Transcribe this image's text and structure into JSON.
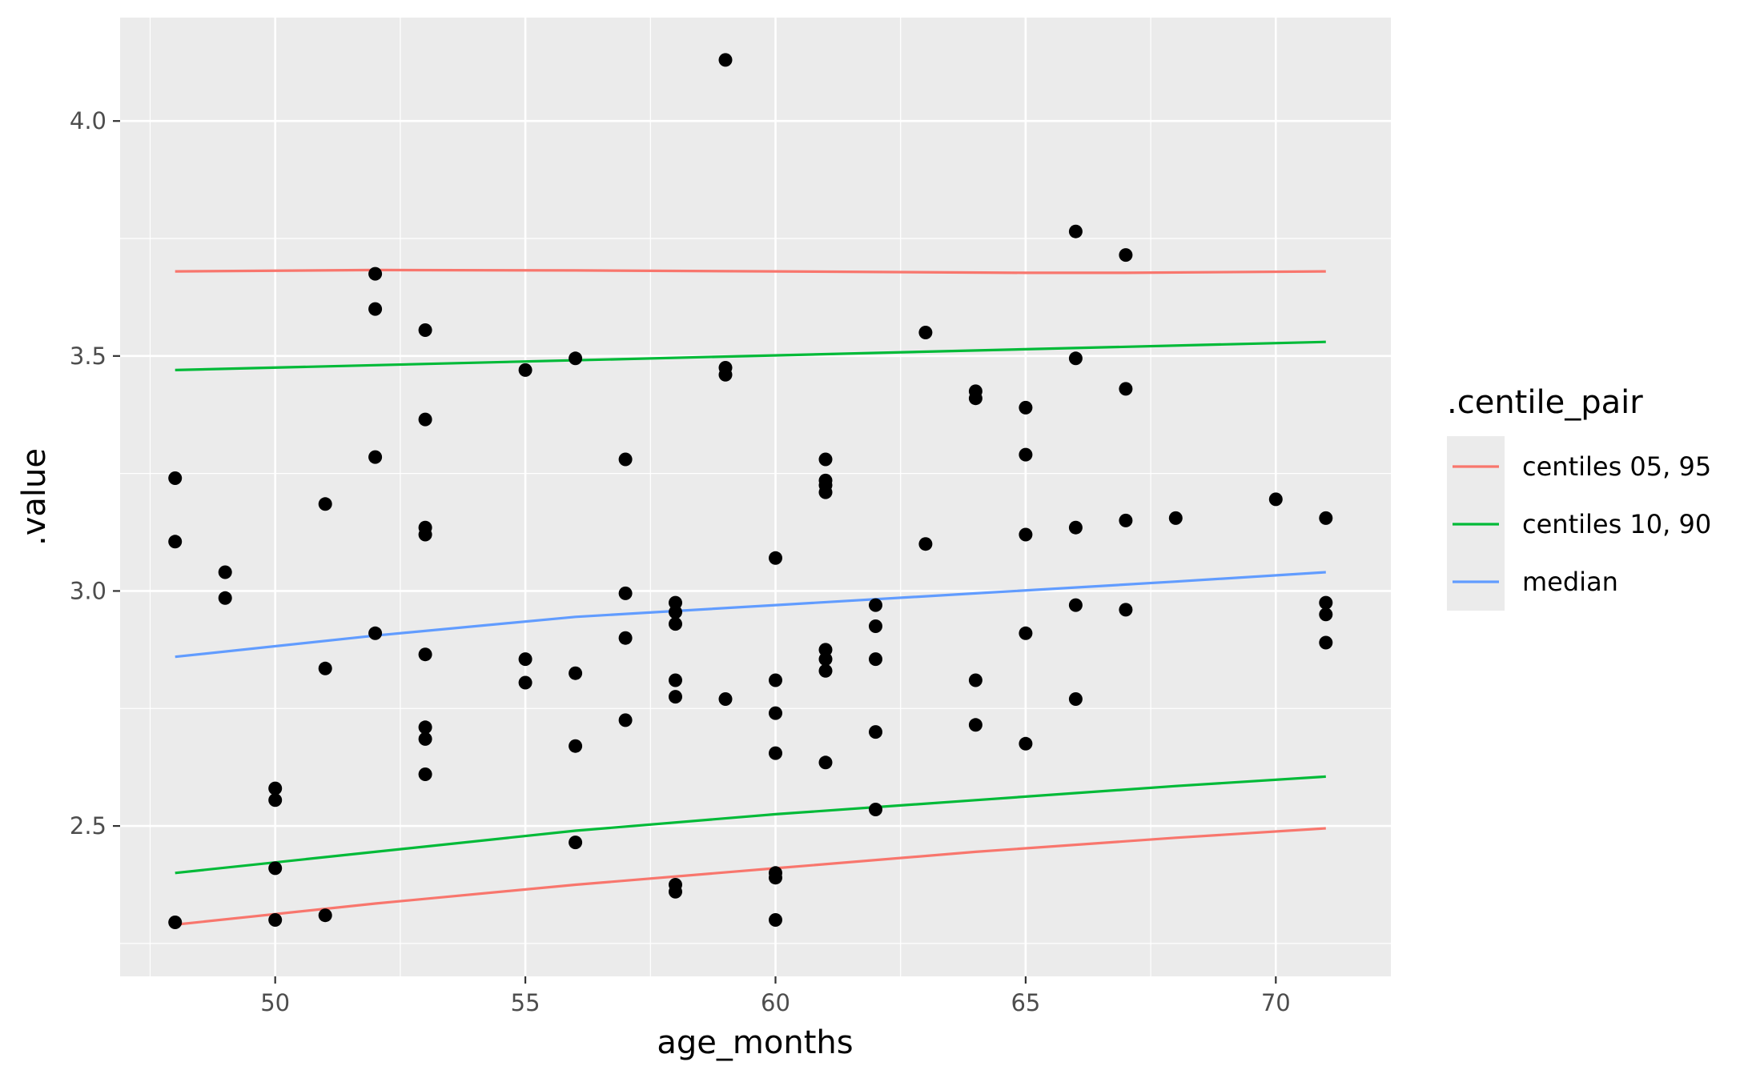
{
  "chart_data": {
    "type": "scatter",
    "xlabel": "age_months",
    "ylabel": ".value",
    "xlim": [
      46.9,
      72.3
    ],
    "ylim": [
      2.18,
      4.22
    ],
    "x_ticks": [
      50,
      55,
      60,
      65,
      70
    ],
    "x_tick_labels": [
      "50",
      "55",
      "60",
      "65",
      "70"
    ],
    "y_ticks": [
      2.5,
      3.0,
      3.5,
      4.0
    ],
    "y_tick_labels": [
      "2.5",
      "3.0",
      "3.5",
      "4.0"
    ],
    "grid": true,
    "background": "#ebebeb",
    "legend": {
      "title": ".centile_pair",
      "position": "right",
      "items": [
        {
          "label": "centiles 05, 95",
          "color": "#f8766d"
        },
        {
          "label": "centiles 10, 90",
          "color": "#00ba38"
        },
        {
          "label": "median",
          "color": "#619cff"
        }
      ]
    },
    "points": [
      {
        "x": 48,
        "y": 3.24
      },
      {
        "x": 48,
        "y": 3.105
      },
      {
        "x": 48,
        "y": 2.295
      },
      {
        "x": 49,
        "y": 3.04
      },
      {
        "x": 49,
        "y": 2.985
      },
      {
        "x": 50,
        "y": 2.58
      },
      {
        "x": 50,
        "y": 2.555
      },
      {
        "x": 50,
        "y": 2.41
      },
      {
        "x": 50,
        "y": 2.3
      },
      {
        "x": 51,
        "y": 3.185
      },
      {
        "x": 51,
        "y": 2.835
      },
      {
        "x": 51,
        "y": 2.31
      },
      {
        "x": 52,
        "y": 3.675
      },
      {
        "x": 52,
        "y": 3.6
      },
      {
        "x": 52,
        "y": 3.285
      },
      {
        "x": 52,
        "y": 2.91
      },
      {
        "x": 53,
        "y": 3.555
      },
      {
        "x": 53,
        "y": 3.365
      },
      {
        "x": 53,
        "y": 3.135
      },
      {
        "x": 53,
        "y": 3.12
      },
      {
        "x": 53,
        "y": 2.865
      },
      {
        "x": 53,
        "y": 2.71
      },
      {
        "x": 53,
        "y": 2.685
      },
      {
        "x": 53,
        "y": 2.61
      },
      {
        "x": 55,
        "y": 3.47
      },
      {
        "x": 55,
        "y": 2.855
      },
      {
        "x": 55,
        "y": 2.805
      },
      {
        "x": 56,
        "y": 3.495
      },
      {
        "x": 56,
        "y": 2.825
      },
      {
        "x": 56,
        "y": 2.67
      },
      {
        "x": 56,
        "y": 2.465
      },
      {
        "x": 57,
        "y": 3.28
      },
      {
        "x": 57,
        "y": 2.995
      },
      {
        "x": 57,
        "y": 2.9
      },
      {
        "x": 57,
        "y": 2.725
      },
      {
        "x": 58,
        "y": 2.975
      },
      {
        "x": 58,
        "y": 2.955
      },
      {
        "x": 58,
        "y": 2.93
      },
      {
        "x": 58,
        "y": 2.81
      },
      {
        "x": 58,
        "y": 2.775
      },
      {
        "x": 58,
        "y": 2.375
      },
      {
        "x": 58,
        "y": 2.36
      },
      {
        "x": 59,
        "y": 4.13
      },
      {
        "x": 59,
        "y": 3.475
      },
      {
        "x": 59,
        "y": 3.46
      },
      {
        "x": 59,
        "y": 2.77
      },
      {
        "x": 60,
        "y": 3.07
      },
      {
        "x": 60,
        "y": 2.81
      },
      {
        "x": 60,
        "y": 2.74
      },
      {
        "x": 60,
        "y": 2.655
      },
      {
        "x": 60,
        "y": 2.4
      },
      {
        "x": 60,
        "y": 2.39
      },
      {
        "x": 60,
        "y": 2.3
      },
      {
        "x": 61,
        "y": 3.28
      },
      {
        "x": 61,
        "y": 3.235
      },
      {
        "x": 61,
        "y": 3.225
      },
      {
        "x": 61,
        "y": 3.21
      },
      {
        "x": 61,
        "y": 2.875
      },
      {
        "x": 61,
        "y": 2.855
      },
      {
        "x": 61,
        "y": 2.83
      },
      {
        "x": 61,
        "y": 2.635
      },
      {
        "x": 62,
        "y": 2.97
      },
      {
        "x": 62,
        "y": 2.925
      },
      {
        "x": 62,
        "y": 2.855
      },
      {
        "x": 62,
        "y": 2.7
      },
      {
        "x": 62,
        "y": 2.535
      },
      {
        "x": 63,
        "y": 3.55
      },
      {
        "x": 63,
        "y": 3.1
      },
      {
        "x": 64,
        "y": 3.425
      },
      {
        "x": 64,
        "y": 3.41
      },
      {
        "x": 64,
        "y": 2.81
      },
      {
        "x": 64,
        "y": 2.715
      },
      {
        "x": 65,
        "y": 3.39
      },
      {
        "x": 65,
        "y": 3.29
      },
      {
        "x": 65,
        "y": 3.12
      },
      {
        "x": 65,
        "y": 2.91
      },
      {
        "x": 65,
        "y": 2.675
      },
      {
        "x": 66,
        "y": 3.765
      },
      {
        "x": 66,
        "y": 3.495
      },
      {
        "x": 66,
        "y": 3.135
      },
      {
        "x": 66,
        "y": 2.97
      },
      {
        "x": 66,
        "y": 2.77
      },
      {
        "x": 67,
        "y": 3.715
      },
      {
        "x": 67,
        "y": 3.43
      },
      {
        "x": 67,
        "y": 3.15
      },
      {
        "x": 67,
        "y": 2.96
      },
      {
        "x": 68,
        "y": 3.155
      },
      {
        "x": 70,
        "y": 3.195
      },
      {
        "x": 71,
        "y": 3.155
      },
      {
        "x": 71,
        "y": 2.975
      },
      {
        "x": 71,
        "y": 2.95
      },
      {
        "x": 71,
        "y": 2.89
      }
    ],
    "series": [
      {
        "group": "centiles 05, 95",
        "color": "#f8766d",
        "x": [
          48,
          52,
          56,
          60,
          65,
          67,
          71
        ],
        "y": [
          3.68,
          3.683,
          3.682,
          3.68,
          3.677,
          3.677,
          3.68
        ]
      },
      {
        "group": "centiles 05, 95",
        "color": "#f8766d",
        "x": [
          48,
          52,
          56,
          60,
          64,
          68,
          71
        ],
        "y": [
          2.29,
          2.335,
          2.375,
          2.41,
          2.445,
          2.475,
          2.495
        ]
      },
      {
        "group": "centiles 10, 90",
        "color": "#00ba38",
        "x": [
          48,
          71
        ],
        "y": [
          3.47,
          3.53
        ]
      },
      {
        "group": "centiles 10, 90",
        "color": "#00ba38",
        "x": [
          48,
          52,
          56,
          60,
          64,
          68,
          71
        ],
        "y": [
          2.4,
          2.445,
          2.49,
          2.525,
          2.555,
          2.585,
          2.605
        ]
      },
      {
        "group": "median",
        "color": "#619cff",
        "x": [
          48,
          52,
          56,
          60,
          64,
          68,
          71
        ],
        "y": [
          2.86,
          2.905,
          2.945,
          2.97,
          2.995,
          3.02,
          3.04
        ]
      }
    ]
  }
}
